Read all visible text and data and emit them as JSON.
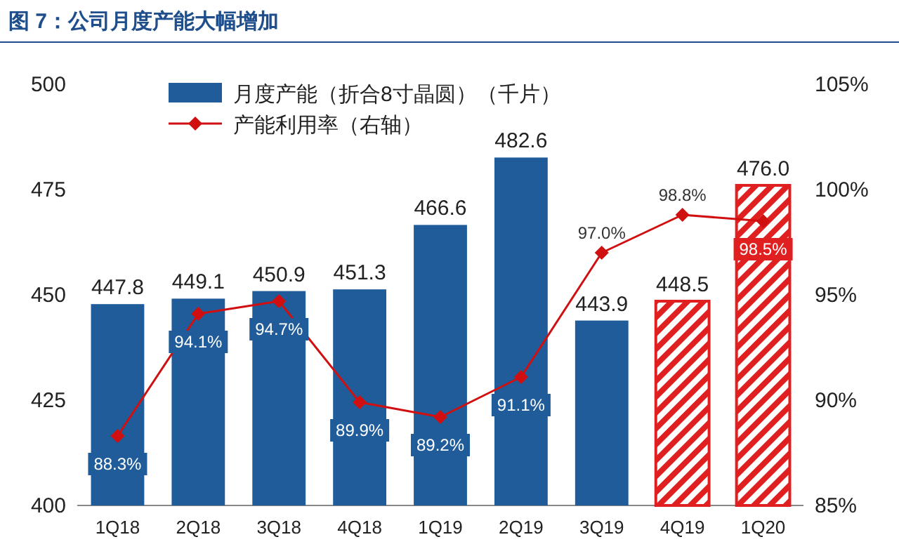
{
  "chart_data": {
    "type": "bar",
    "title": "图 7：公司月度产能大幅增加",
    "categories": [
      "1Q18",
      "2Q18",
      "3Q18",
      "4Q18",
      "1Q19",
      "2Q19",
      "3Q19",
      "4Q19",
      "1Q20"
    ],
    "ylim": [
      400,
      500
    ],
    "yticks": [
      400,
      425,
      450,
      475,
      500
    ],
    "y2lim": [
      85,
      105
    ],
    "y2ticks": [
      {
        "value": 85,
        "label": "85%"
      },
      {
        "value": 90,
        "label": "90%"
      },
      {
        "value": 95,
        "label": "95%"
      },
      {
        "value": 100,
        "label": "100%"
      },
      {
        "value": 105,
        "label": "105%"
      }
    ],
    "legend": "top left",
    "grid": false,
    "series": [
      {
        "name": "月度产能（折合8寸晶圆）（千片）",
        "color": "#1f5c99",
        "colors": [
          "#1f5c99",
          "#1f5c99",
          "#1f5c99",
          "#1f5c99",
          "#1f5c99",
          "#1f5c99",
          "#1f5c99",
          "#e02020",
          "#e02020"
        ],
        "values": [
          447.8,
          449.1,
          450.9,
          451.3,
          466.6,
          482.6,
          443.9,
          448.5,
          476.0
        ],
        "value_labels": [
          "447.8",
          "449.1",
          "450.9",
          "451.3",
          "466.6",
          "482.6",
          "443.9",
          "448.5",
          "476.0"
        ]
      },
      {
        "name": "产能利用率（右轴）",
        "type": "line",
        "axis": "y2",
        "color": "#d01010",
        "marker": "diamond",
        "line_style": "solid",
        "values": [
          88.3,
          94.1,
          94.7,
          89.9,
          89.2,
          91.1,
          97.0,
          98.8,
          98.5
        ],
        "value_labels": [
          "88.3%",
          "94.1%",
          "94.7%",
          "89.9%",
          "89.2%",
          "91.1%",
          "97.0%",
          "98.8%",
          "98.5%"
        ]
      }
    ]
  }
}
